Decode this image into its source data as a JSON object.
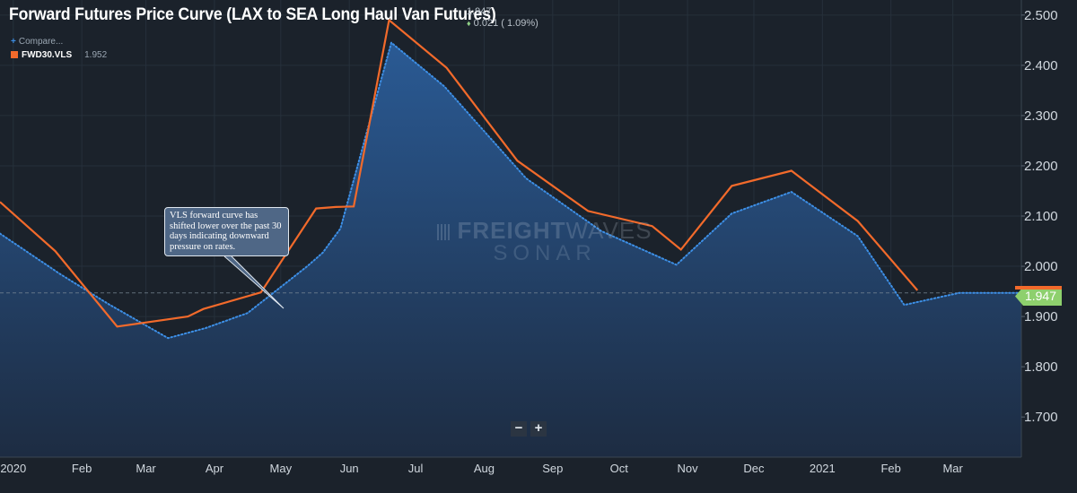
{
  "title": "Forward Futures Price Curve (LAX to SEA Long Haul Van Futures)",
  "quote": {
    "last": "1.947",
    "change": "0.021 ( 1.09%)",
    "change_arrow": "♦"
  },
  "legend": {
    "compare_label": "Compare...",
    "series_name": "FWD30.VLS",
    "series_value": "1.952"
  },
  "zoom": {
    "minus": "−",
    "plus": "+"
  },
  "watermark": {
    "line1_bold": "FREIGHT",
    "line1_light": "WAVES",
    "line2": "SONAR"
  },
  "annotation": "VLS forward curve has shifted lower over the past 30 days indicating downward pressure on rates.",
  "price_tag": "1.947",
  "colors": {
    "background": "#1b222b",
    "area_top": "#2a5a94",
    "area_bottom": "#1d2c42",
    "current": "#3d8fe6",
    "prior": "#f26a2b",
    "tag": "#8ed06d"
  },
  "chart_data": {
    "type": "line",
    "ylim": [
      1.62,
      2.53
    ],
    "xlim": [
      "2019-12-26",
      "2021-04-01"
    ],
    "y_ticks": [
      "2.500",
      "2.400",
      "2.300",
      "2.200",
      "2.100",
      "2.000",
      "1.900",
      "1.800",
      "1.700"
    ],
    "x_ticks": [
      {
        "label": "2020",
        "date": "2020-01-01"
      },
      {
        "label": "Feb",
        "date": "2020-02-01"
      },
      {
        "label": "Mar",
        "date": "2020-03-01"
      },
      {
        "label": "Apr",
        "date": "2020-04-01"
      },
      {
        "label": "May",
        "date": "2020-05-01"
      },
      {
        "label": "Jun",
        "date": "2020-06-01"
      },
      {
        "label": "Jul",
        "date": "2020-07-01"
      },
      {
        "label": "Aug",
        "date": "2020-08-01"
      },
      {
        "label": "Sep",
        "date": "2020-09-01"
      },
      {
        "label": "Oct",
        "date": "2020-10-01"
      },
      {
        "label": "Nov",
        "date": "2020-11-01"
      },
      {
        "label": "Dec",
        "date": "2020-12-01"
      },
      {
        "label": "2021",
        "date": "2021-01-01"
      },
      {
        "label": "Feb",
        "date": "2021-02-01"
      },
      {
        "label": "Mar",
        "date": "2021-03-01"
      }
    ],
    "series": [
      {
        "name": "",
        "style": "dotted-area",
        "points": [
          [
            "2019-12-26",
            2.065
          ],
          [
            "2020-01-22",
            1.985
          ],
          [
            "2020-02-13",
            1.925
          ],
          [
            "2020-03-11",
            1.857
          ],
          [
            "2020-03-28",
            1.877
          ],
          [
            "2020-04-16",
            1.907
          ],
          [
            "2020-05-13",
            2.0
          ],
          [
            "2020-05-20",
            2.027
          ],
          [
            "2020-05-28",
            2.075
          ],
          [
            "2020-06-20",
            2.445
          ],
          [
            "2020-07-14",
            2.358
          ],
          [
            "2020-08-20",
            2.175
          ],
          [
            "2020-09-23",
            2.07
          ],
          [
            "2020-10-27",
            2.003
          ],
          [
            "2020-11-21",
            2.105
          ],
          [
            "2020-12-18",
            2.148
          ],
          [
            "2021-01-17",
            2.06
          ],
          [
            "2021-02-07",
            1.923
          ],
          [
            "2021-03-04",
            1.947
          ]
        ]
      },
      {
        "name": "FWD30.VLS",
        "style": "line",
        "points": [
          [
            "2019-12-26",
            2.128
          ],
          [
            "2020-01-20",
            2.03
          ],
          [
            "2020-02-17",
            1.88
          ],
          [
            "2020-03-20",
            1.9
          ],
          [
            "2020-03-27",
            1.915
          ],
          [
            "2020-04-22",
            1.948
          ],
          [
            "2020-05-17",
            2.115
          ],
          [
            "2020-05-26",
            2.118
          ],
          [
            "2020-06-03",
            2.119
          ],
          [
            "2020-06-19",
            2.49
          ],
          [
            "2020-07-15",
            2.395
          ],
          [
            "2020-08-16",
            2.21
          ],
          [
            "2020-09-17",
            2.11
          ],
          [
            "2020-10-16",
            2.08
          ],
          [
            "2020-10-29",
            2.033
          ],
          [
            "2020-11-21",
            2.16
          ],
          [
            "2020-12-18",
            2.19
          ],
          [
            "2021-01-17",
            2.09
          ],
          [
            "2021-02-13",
            1.952
          ]
        ]
      }
    ],
    "reference_line": 1.947
  }
}
